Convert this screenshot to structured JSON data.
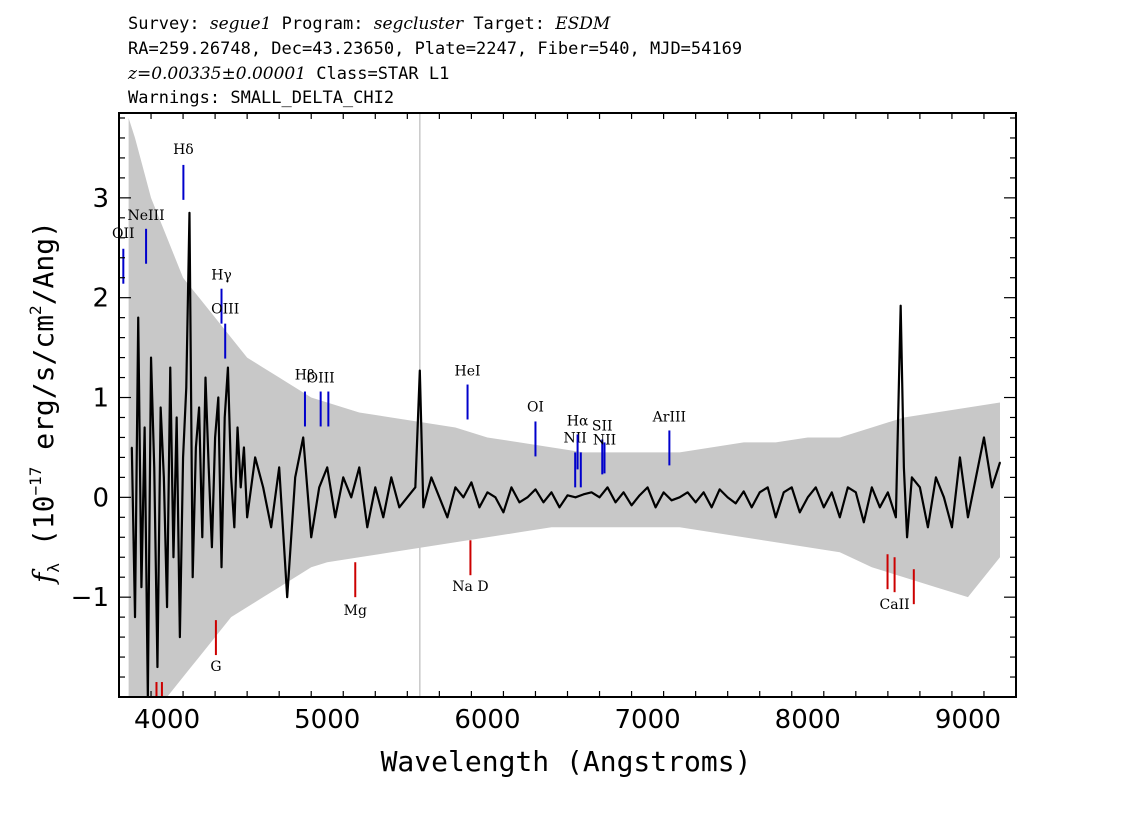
{
  "header": {
    "line1": {
      "survey_prefix": "Survey: ",
      "survey": "segue1",
      "program_prefix": " Program: ",
      "program": "segcluster",
      "target_prefix": " Target: ",
      "target": "ESDM"
    },
    "line2": "RA=259.26748, Dec=43.23650, Plate=2247, Fiber=540, MJD=54169",
    "line3": {
      "redshift": "z=0.00335±0.00001",
      "class": " Class=STAR L1"
    },
    "line4": "Warnings: SMALL_DELTA_CHI2"
  },
  "chart_data": {
    "type": "line",
    "xlabel": "Wavelength (Angstroms)",
    "ylabel": "f_λ (10^-17 erg/s/cm²/Ang)",
    "xlim": [
      3700,
      9300
    ],
    "ylim": [
      -2.0,
      3.85
    ],
    "x_ticks": [
      4000,
      5000,
      6000,
      7000,
      8000,
      9000
    ],
    "y_ticks": [
      -1,
      0,
      1,
      2,
      3
    ],
    "series": [
      {
        "role": "error envelope",
        "color": "#c8c8c8",
        "x": [
          3760,
          3800,
          3850,
          3900,
          3950,
          4000,
          4050,
          4100,
          4150,
          4200,
          4250,
          4300,
          4350,
          4400,
          4500,
          4600,
          4700,
          4800,
          4900,
          5000,
          5200,
          5400,
          5600,
          5800,
          6000,
          6200,
          6400,
          6600,
          6800,
          7000,
          7200,
          7400,
          7600,
          7800,
          8000,
          8200,
          8400,
          8600,
          8800,
          9000,
          9200
        ],
        "upper": [
          3.8,
          3.6,
          3.3,
          3.0,
          2.8,
          2.6,
          2.4,
          2.2,
          2.1,
          2.0,
          1.9,
          1.8,
          1.7,
          1.6,
          1.4,
          1.3,
          1.2,
          1.1,
          1.0,
          0.95,
          0.85,
          0.8,
          0.75,
          0.7,
          0.6,
          0.55,
          0.5,
          0.45,
          0.45,
          0.45,
          0.45,
          0.5,
          0.55,
          0.55,
          0.6,
          0.6,
          0.7,
          0.8,
          0.85,
          0.9,
          0.95
        ],
        "lower": [
          -2.0,
          -2.0,
          -2.0,
          -2.0,
          -2.0,
          -2.0,
          -1.9,
          -1.8,
          -1.7,
          -1.6,
          -1.5,
          -1.4,
          -1.3,
          -1.2,
          -1.1,
          -1.0,
          -0.9,
          -0.8,
          -0.7,
          -0.65,
          -0.6,
          -0.55,
          -0.5,
          -0.45,
          -0.4,
          -0.35,
          -0.3,
          -0.3,
          -0.3,
          -0.3,
          -0.3,
          -0.35,
          -0.4,
          -0.45,
          -0.5,
          -0.55,
          -0.7,
          -0.8,
          -0.9,
          -1.0,
          -0.6
        ]
      },
      {
        "role": "flux",
        "color": "#000000",
        "x": [
          3780,
          3800,
          3820,
          3840,
          3860,
          3880,
          3900,
          3920,
          3940,
          3960,
          3980,
          4000,
          4020,
          4040,
          4060,
          4080,
          4100,
          4120,
          4140,
          4160,
          4180,
          4200,
          4220,
          4240,
          4260,
          4280,
          4300,
          4320,
          4340,
          4360,
          4380,
          4400,
          4420,
          4440,
          4460,
          4480,
          4500,
          4550,
          4600,
          4650,
          4700,
          4750,
          4800,
          4850,
          4900,
          4950,
          5000,
          5050,
          5100,
          5150,
          5200,
          5250,
          5300,
          5350,
          5400,
          5450,
          5500,
          5550,
          5578,
          5600,
          5650,
          5700,
          5750,
          5800,
          5850,
          5900,
          5950,
          6000,
          6050,
          6100,
          6150,
          6200,
          6250,
          6300,
          6350,
          6400,
          6450,
          6500,
          6550,
          6600,
          6650,
          6700,
          6750,
          6800,
          6850,
          6900,
          6950,
          7000,
          7050,
          7100,
          7150,
          7200,
          7250,
          7300,
          7350,
          7400,
          7450,
          7500,
          7550,
          7600,
          7650,
          7700,
          7750,
          7800,
          7850,
          7900,
          7950,
          8000,
          8050,
          8100,
          8150,
          8200,
          8250,
          8300,
          8350,
          8400,
          8450,
          8500,
          8550,
          8580,
          8600,
          8620,
          8650,
          8700,
          8750,
          8800,
          8850,
          8900,
          8950,
          9000,
          9050,
          9100,
          9150,
          9200
        ],
        "values": [
          0.5,
          -1.2,
          1.8,
          -0.9,
          0.7,
          -2.0,
          1.4,
          0.3,
          -1.7,
          0.9,
          0.2,
          -1.1,
          1.3,
          -0.6,
          0.8,
          -1.4,
          0.4,
          1.1,
          2.85,
          -0.8,
          0.5,
          0.9,
          -0.4,
          1.2,
          0.3,
          -0.5,
          0.6,
          1.0,
          -0.7,
          0.8,
          1.3,
          0.2,
          -0.3,
          0.7,
          0.1,
          0.5,
          -0.2,
          0.4,
          0.1,
          -0.3,
          0.3,
          -1.0,
          0.2,
          0.6,
          -0.4,
          0.1,
          0.3,
          -0.2,
          0.2,
          0.0,
          0.3,
          -0.3,
          0.1,
          -0.2,
          0.2,
          -0.1,
          0.0,
          0.1,
          1.27,
          -0.1,
          0.2,
          0.0,
          -0.2,
          0.1,
          0.0,
          0.15,
          -0.1,
          0.05,
          0.0,
          -0.15,
          0.1,
          -0.05,
          0.0,
          0.08,
          -0.05,
          0.05,
          -0.1,
          0.02,
          0.0,
          0.03,
          0.05,
          0.0,
          0.1,
          -0.05,
          0.05,
          -0.08,
          0.02,
          0.1,
          -0.1,
          0.05,
          -0.03,
          0.0,
          0.05,
          -0.05,
          0.05,
          -0.1,
          0.08,
          0.0,
          -0.06,
          0.06,
          -0.1,
          0.05,
          0.1,
          -0.2,
          0.05,
          0.1,
          -0.15,
          0.0,
          0.1,
          -0.1,
          0.05,
          -0.2,
          0.1,
          0.05,
          -0.25,
          0.1,
          -0.1,
          0.05,
          -0.2,
          1.92,
          0.3,
          -0.4,
          0.2,
          0.1,
          -0.3,
          0.2,
          0.0,
          -0.3,
          0.4,
          -0.2,
          0.2,
          0.6,
          0.1,
          0.35
        ]
      }
    ],
    "sky_line": {
      "x": 5578,
      "color": "#c8c8c8"
    },
    "emission_lines": [
      {
        "label": "OII",
        "x": 3727,
        "y_label": 2.6,
        "y0": 2.14,
        "y1": 2.49,
        "color": "#0000cc"
      },
      {
        "label": "NeIII",
        "x": 3869,
        "y_label": 2.78,
        "y0": 2.34,
        "y1": 2.69,
        "color": "#0000cc"
      },
      {
        "label": "Hδ",
        "x": 4102,
        "y_label": 3.44,
        "y0": 2.98,
        "y1": 3.33,
        "color": "#0000cc"
      },
      {
        "label": "Hγ",
        "x": 4340,
        "y_label": 2.18,
        "y0": 1.74,
        "y1": 2.09,
        "color": "#0000cc"
      },
      {
        "label": "OIII",
        "x": 4363,
        "y_label": 1.84,
        "y0": 1.39,
        "y1": 1.74,
        "color": "#0000cc"
      },
      {
        "label": "Hβ",
        "x": 4861,
        "y_label": 1.18,
        "y0": 0.71,
        "y1": 1.06,
        "color": "#0000cc"
      },
      {
        "label": "OIII",
        "x": 4959,
        "y_label": 1.15,
        "y0": 0.71,
        "y1": 1.06,
        "color": "#0000cc"
      },
      {
        "label": "OIII",
        "x": 5007,
        "y_label": null,
        "y0": 0.71,
        "y1": 1.06,
        "color": "#0000cc"
      },
      {
        "label": "HeI",
        "x": 5876,
        "y_label": 1.22,
        "y0": 0.78,
        "y1": 1.13,
        "color": "#0000cc"
      },
      {
        "label": "OI",
        "x": 6300,
        "y_label": 0.86,
        "y0": 0.41,
        "y1": 0.76,
        "color": "#0000cc"
      },
      {
        "label": "NII",
        "x": 6548,
        "y_label": 0.55,
        "y0": 0.1,
        "y1": 0.45,
        "color": "#0000cc"
      },
      {
        "label": "Hα",
        "x": 6563,
        "y_label": 0.72,
        "y0": 0.28,
        "y1": 0.63,
        "color": "#0000cc"
      },
      {
        "label": "NII",
        "x": 6583,
        "y_label": null,
        "y0": 0.1,
        "y1": 0.45,
        "color": "#0000cc"
      },
      {
        "label": "SII",
        "x": 6717,
        "y_label": 0.67,
        "y0": 0.23,
        "y1": 0.58,
        "color": "#0000cc"
      },
      {
        "label": "NII",
        "x": 6731,
        "y_label": 0.53,
        "y0": 0.24,
        "y1": 0.55,
        "color": "#0000cc"
      },
      {
        "label": "ArIII",
        "x": 7136,
        "y_label": 0.76,
        "y0": 0.32,
        "y1": 0.67,
        "color": "#0000cc"
      }
    ],
    "absorption_lines": [
      {
        "label": "G",
        "x": 4305,
        "y_label": -1.74,
        "y0": -1.58,
        "y1": -1.23,
        "color": "#cc0000"
      },
      {
        "label": "Mg",
        "x": 5175,
        "y_label": -1.18,
        "y0": -1.0,
        "y1": -0.65,
        "color": "#cc0000"
      },
      {
        "label": "Na D",
        "x": 5894,
        "y_label": -0.94,
        "y0": -0.78,
        "y1": -0.43,
        "color": "#cc0000"
      },
      {
        "label": "CaII",
        "x": 8542,
        "y_label": -1.12,
        "y0": -0.95,
        "y1": -0.6,
        "color": "#cc0000"
      },
      {
        "label": "",
        "x": 8498,
        "y_label": null,
        "y0": -0.92,
        "y1": -0.57,
        "color": "#cc0000"
      },
      {
        "label": "",
        "x": 8662,
        "y_label": null,
        "y0": -1.07,
        "y1": -0.72,
        "color": "#cc0000"
      },
      {
        "label": "",
        "x": 3934,
        "y_label": null,
        "y0": -2.0,
        "y1": -1.85,
        "color": "#cc0000"
      },
      {
        "label": "",
        "x": 3968,
        "y_label": null,
        "y0": -2.0,
        "y1": -1.85,
        "color": "#cc0000"
      }
    ]
  }
}
